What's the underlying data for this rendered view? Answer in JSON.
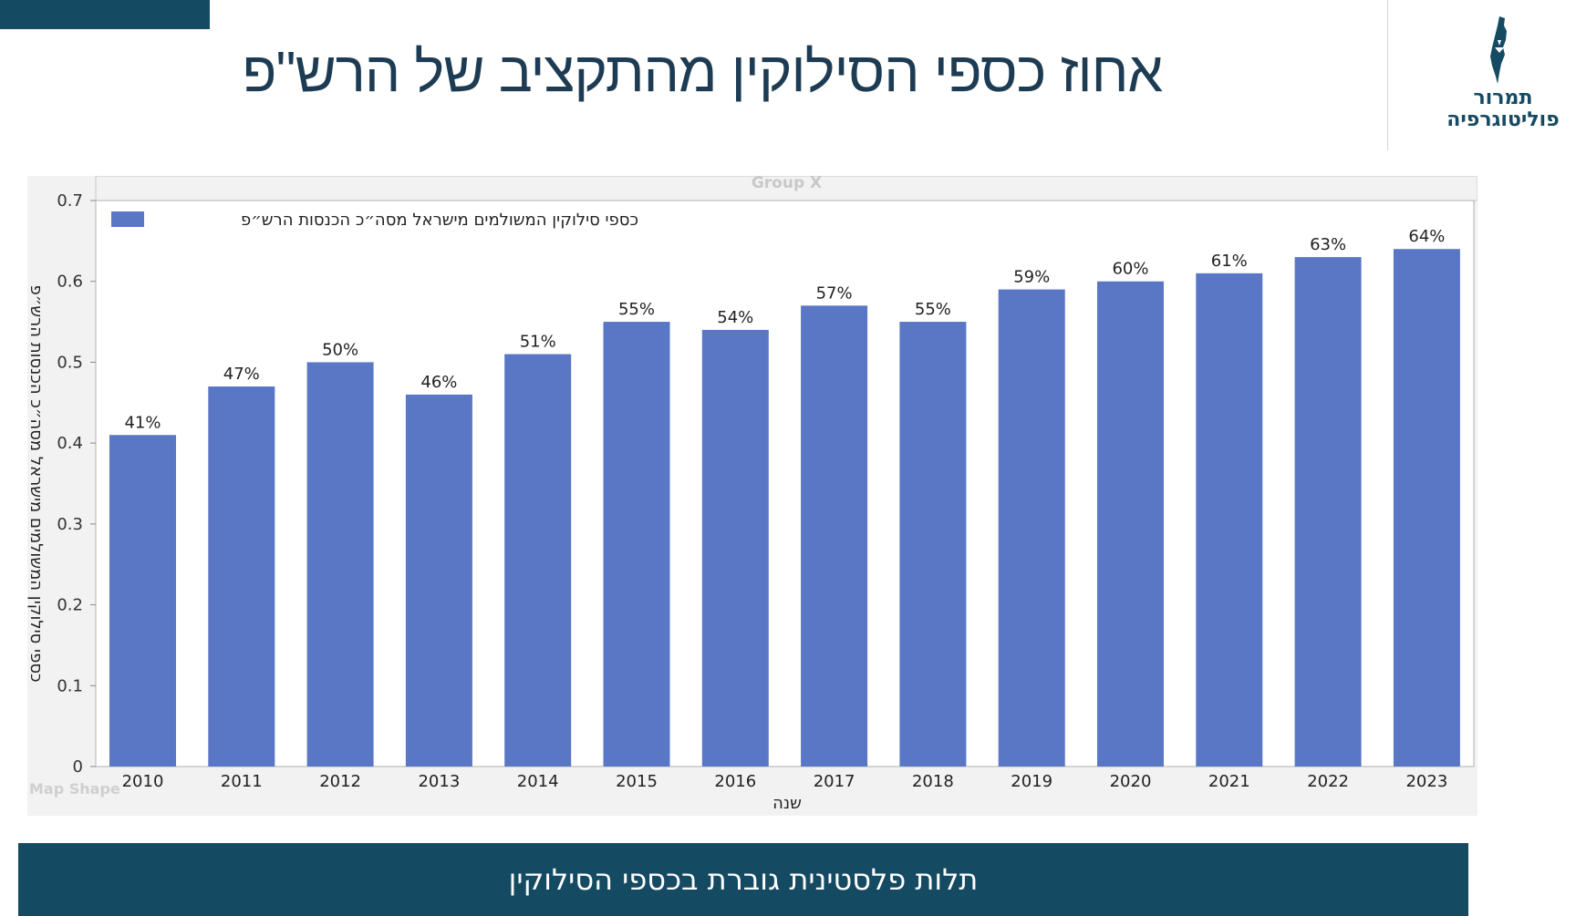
{
  "page": {
    "title": "אחוז כספי הסילוקין מהתקציב של הרש\"פ",
    "footer_text": "תלות פלסטינית גוברת בכספי הסילוקין",
    "accent_color": "#154a63"
  },
  "logo": {
    "line1": "תמרור",
    "line2": "פוליטוגרפיה",
    "icon": "israel-map-icon"
  },
  "chart_data": {
    "type": "bar",
    "group_label": "Group X",
    "corner_label": "Map Shape",
    "categories": [
      "2010",
      "2011",
      "2012",
      "2013",
      "2014",
      "2015",
      "2016",
      "2017",
      "2018",
      "2019",
      "2020",
      "2021",
      "2022",
      "2023"
    ],
    "series": [
      {
        "name": "כספי סילוקין המשולמים מישראל מסה״כ הכנסות הרש״פ",
        "color": "#5977c5",
        "values": [
          0.41,
          0.47,
          0.5,
          0.46,
          0.51,
          0.55,
          0.54,
          0.57,
          0.55,
          0.59,
          0.6,
          0.61,
          0.63,
          0.64
        ],
        "labels": [
          "41%",
          "47%",
          "50%",
          "46%",
          "51%",
          "55%",
          "54%",
          "57%",
          "55%",
          "59%",
          "60%",
          "61%",
          "63%",
          "64%"
        ]
      }
    ],
    "xlabel": "שנה",
    "ylabel": "כספי סילוקין המשולמים מישראל מסה״כ הכנסות הרש״פ",
    "ylim": [
      0,
      0.7
    ],
    "yticks": [
      "0",
      "0.1",
      "0.2",
      "0.3",
      "0.4",
      "0.5",
      "0.6",
      "0.7"
    ],
    "grid": false,
    "legend_position": "top-left"
  }
}
